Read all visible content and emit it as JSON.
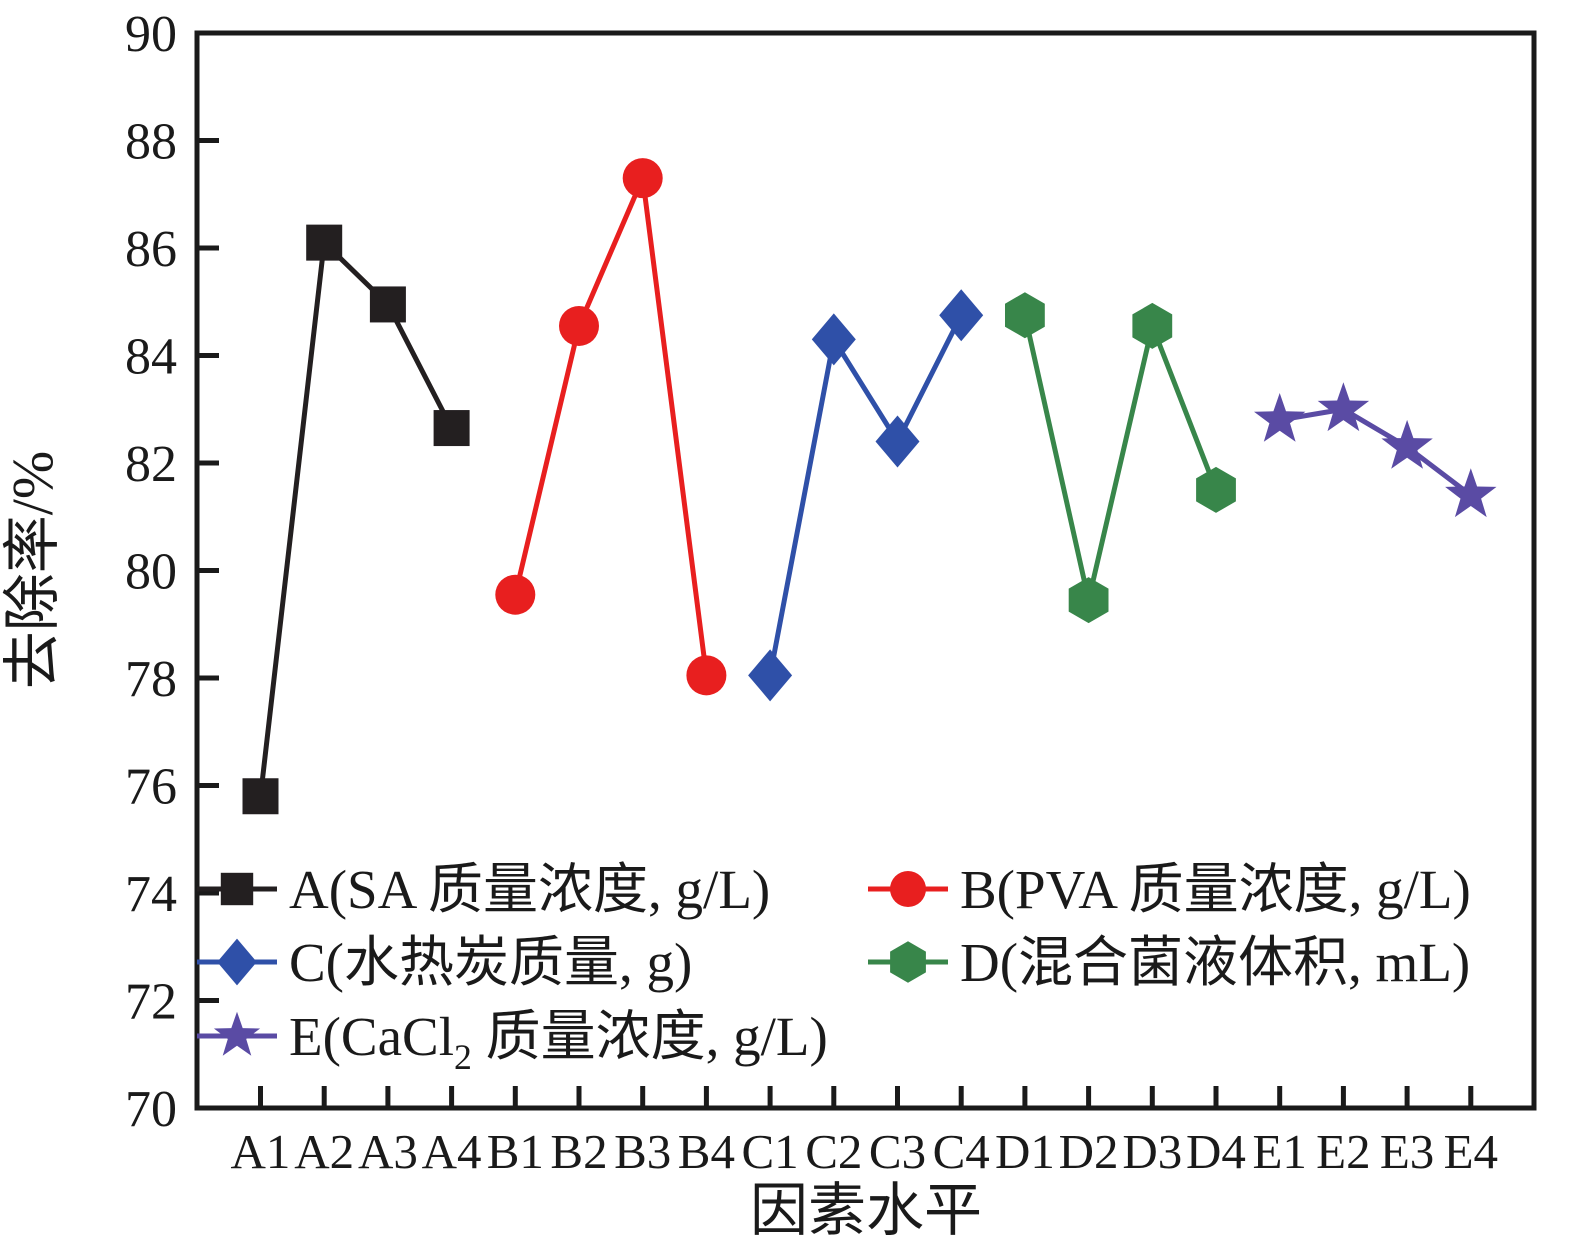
{
  "figure": {
    "background": "#ffffff",
    "axis_color": "#1a1a1a"
  },
  "chart_data": {
    "type": "line",
    "title": "",
    "xlabel": "因素水平",
    "ylabel": "去除率/%",
    "ylim": [
      70,
      90
    ],
    "ytick_step": 2,
    "grid": false,
    "legend_position": "inside bottom-left, two columns",
    "categories": [
      "A1",
      "A2",
      "A3",
      "A4",
      "B1",
      "B2",
      "B3",
      "B4",
      "C1",
      "C2",
      "C3",
      "C4",
      "D1",
      "D2",
      "D3",
      "D4",
      "E1",
      "E2",
      "E3",
      "E4"
    ],
    "series": [
      {
        "name": "A(SA 质量浓度, g/L)",
        "marker": "square",
        "color": "#231f20",
        "categories": [
          "A1",
          "A2",
          "A3",
          "A4"
        ],
        "values": [
          75.8,
          86.1,
          84.95,
          82.65
        ]
      },
      {
        "name": "B(PVA 质量浓度, g/L)",
        "marker": "circle",
        "color": "#e81f1f",
        "categories": [
          "B1",
          "B2",
          "B3",
          "B4"
        ],
        "values": [
          79.55,
          84.55,
          87.3,
          78.05
        ]
      },
      {
        "name": "C(水热炭质量, g)",
        "marker": "diamond",
        "color": "#2f50a8",
        "categories": [
          "C1",
          "C2",
          "C3",
          "C4"
        ],
        "values": [
          78.05,
          84.3,
          82.4,
          84.75
        ]
      },
      {
        "name": "D(混合菌液体积, mL)",
        "marker": "hexagon",
        "color": "#38864a",
        "categories": [
          "D1",
          "D2",
          "D3",
          "D4"
        ],
        "values": [
          84.75,
          79.45,
          84.55,
          81.5
        ]
      },
      {
        "name": "E(CaCl₂ 质量浓度, g/L)",
        "marker": "star",
        "color": "#5a4ba4",
        "categories": [
          "E1",
          "E2",
          "E3",
          "E4"
        ],
        "values": [
          82.8,
          83.0,
          82.3,
          81.4
        ]
      }
    ]
  }
}
